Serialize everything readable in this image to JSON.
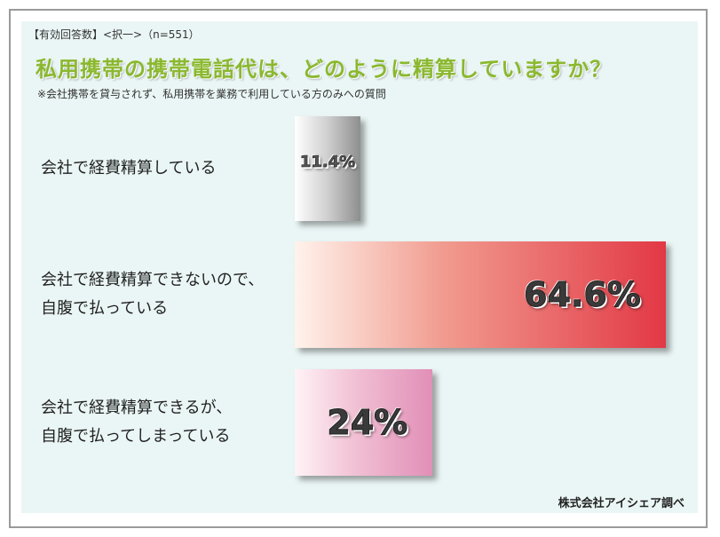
{
  "header_note": "【有効回答数】<択一>（n=551）",
  "title": "私用携帯の携帯電話代は、どのように精算していますか？",
  "subtitle": "※会社携帯を貸与されず、私用携帯を業務で利用している方のみへの質問",
  "source": "株式会社アイシェア調べ",
  "chart_data": {
    "type": "bar",
    "orientation": "horizontal",
    "categories": [
      [
        "会社で経費精算している"
      ],
      [
        "会社で経費精算できないので、",
        "自腹で払っている"
      ],
      [
        "会社で経費精算できるが、",
        "自腹で払ってしまっている"
      ]
    ],
    "values": [
      11.4,
      64.6,
      24
    ],
    "value_labels": [
      "11.4%",
      "64.6%",
      "24%"
    ],
    "title": "私用携帯の携帯電話代は、どのように精算していますか？",
    "xlabel": "",
    "ylabel": "",
    "xlim": [
      0,
      100
    ],
    "colors": [
      "#9a9a9a",
      "#e23845",
      "#e18fb7"
    ],
    "grid": false,
    "legend": "none"
  }
}
